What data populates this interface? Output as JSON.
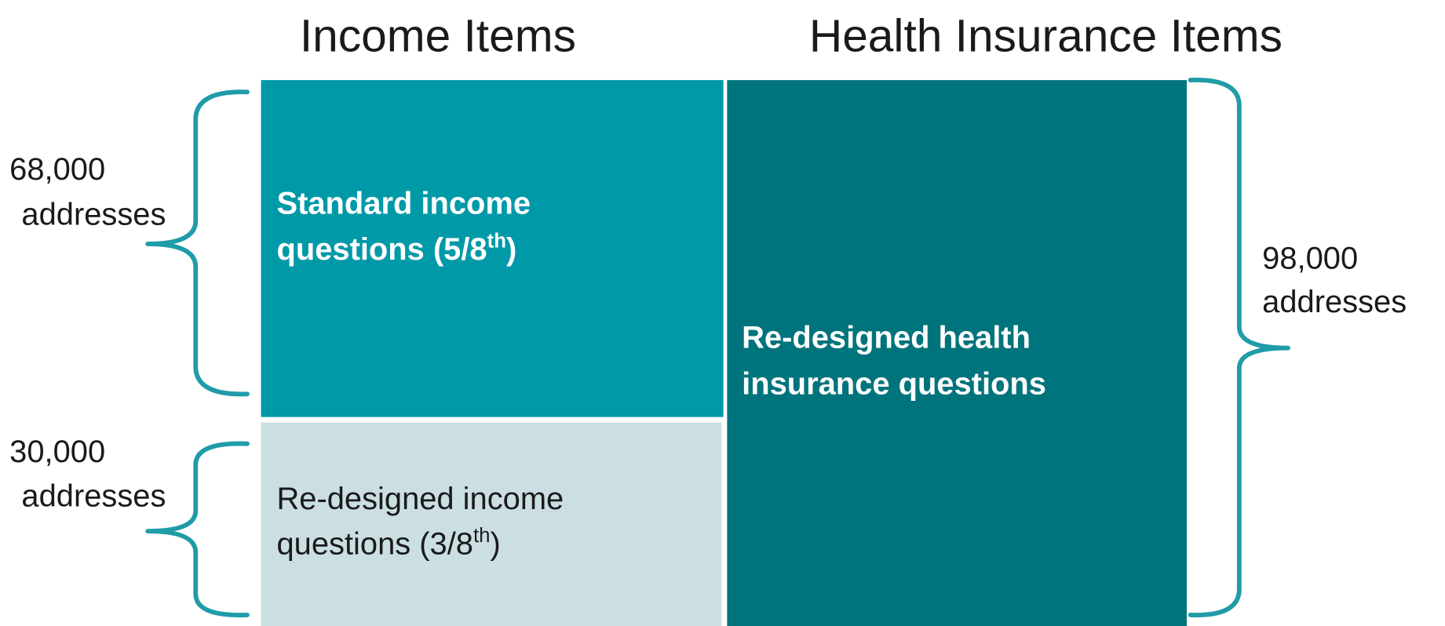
{
  "headings": [
    "Income Items",
    "Health Insurance Items"
  ],
  "boxes": [
    {
      "line1": "Standard income",
      "line2": "questions (5/8",
      "sup": "th",
      "after": ")"
    },
    {
      "line1": "Re-designed income",
      "line2": "questions (3/8",
      "sup": "th",
      "after": ")"
    },
    {
      "line1": "Re-designed health",
      "line2": "insurance questions"
    }
  ],
  "labels": [
    {
      "count": "68,000",
      "unit": "addresses"
    },
    {
      "count": "30,000",
      "unit": "addresses"
    },
    {
      "count": "98,000",
      "unit": "addresses"
    }
  ]
}
